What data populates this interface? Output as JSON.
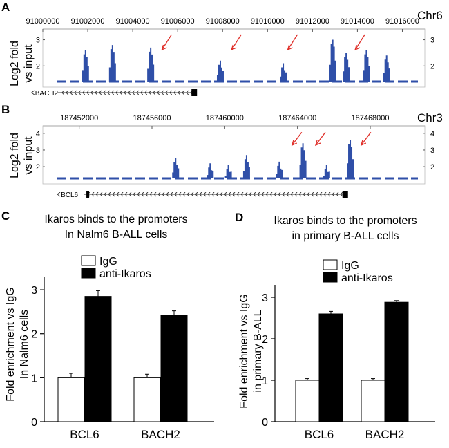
{
  "panels": {
    "A": {
      "letter": "A",
      "chrom": "Chr6",
      "ylabel_1": "Log2 fold",
      "ylabel_2": "vs input",
      "gene": "BACH2"
    },
    "B": {
      "letter": "B",
      "chrom": "Chr3",
      "ylabel_1": "Log2 fold",
      "ylabel_2": "vs input",
      "gene": "BCL6"
    },
    "C": {
      "letter": "C",
      "title_1": "Ikaros binds to the promoters",
      "title_2": "In Nalm6 B-ALL cells",
      "ylabel_1": "Fold enrichment vs IgG",
      "ylabel_2": "In Nalm6 cells"
    },
    "D": {
      "letter": "D",
      "title_1": "Ikaros  binds to the promoters",
      "title_2": "in primary  B-ALL cells",
      "ylabel_1": "Fold enrichment vs IgG",
      "ylabel_2": "in primary B-ALL"
    }
  },
  "colors": {
    "track": "#2f4fa8",
    "arrow": "#e0302a",
    "bar_ikaros": "#000000",
    "bar_igg": "#ffffff"
  },
  "chart_data": [
    {
      "id": "A",
      "type": "area",
      "title": "Chr6",
      "xlabel": "",
      "ylabel": "Log2 fold vs input",
      "x_ticks": [
        91000000,
        91002000,
        91004000,
        91006000,
        91008000,
        91010000,
        91012000,
        91014000,
        91016000
      ],
      "xlim": [
        91000000,
        91017000
      ],
      "ylim": [
        1.4,
        3.2
      ],
      "y_ticks": [
        2,
        3
      ],
      "baseline": 1.4,
      "peaks": [
        {
          "x": 91001900,
          "y": 2.6
        },
        {
          "x": 91003100,
          "y": 2.8
        },
        {
          "x": 91004800,
          "y": 2.7
        },
        {
          "x": 91007900,
          "y": 2.2
        },
        {
          "x": 91010700,
          "y": 2.1
        },
        {
          "x": 91012900,
          "y": 3.0
        },
        {
          "x": 91013500,
          "y": 2.5
        },
        {
          "x": 91014400,
          "y": 2.6
        },
        {
          "x": 91015300,
          "y": 2.4
        }
      ],
      "arrows_at": [
        91005300,
        91008400,
        91010900,
        91013900
      ],
      "gene": {
        "name": "BACH2",
        "start": 90999500,
        "end": 91006800,
        "strand": "-"
      }
    },
    {
      "id": "B",
      "type": "area",
      "title": "Chr3",
      "xlabel": "",
      "ylabel": "Log2 fold vs input",
      "x_ticks": [
        187452000,
        187456000,
        187460000,
        187464000,
        187468000
      ],
      "xlim": [
        187450000,
        187471000
      ],
      "ylim": [
        1.3,
        4.2
      ],
      "y_ticks": [
        2,
        3,
        4
      ],
      "baseline": 1.3,
      "peaks": [
        {
          "x": 187457300,
          "y": 2.5
        },
        {
          "x": 187459200,
          "y": 2.2
        },
        {
          "x": 187460200,
          "y": 2.1
        },
        {
          "x": 187461200,
          "y": 2.7
        },
        {
          "x": 187463000,
          "y": 2.3
        },
        {
          "x": 187464300,
          "y": 3.4
        },
        {
          "x": 187465600,
          "y": 2.1
        },
        {
          "x": 187466900,
          "y": 3.6
        }
      ],
      "arrows_at": [
        187463700,
        187465000,
        187467500
      ],
      "gene": {
        "name": "BCL6",
        "start": 187450800,
        "end": 187466700,
        "strand": "-"
      }
    },
    {
      "id": "C",
      "type": "bar",
      "categories": [
        "BCL6",
        "BACH2"
      ],
      "series": [
        {
          "name": "IgG",
          "values": [
            1.0,
            1.0
          ],
          "errors": [
            0.1,
            0.08
          ]
        },
        {
          "name": "anti-Ikaros",
          "values": [
            2.85,
            2.42
          ],
          "errors": [
            0.13,
            0.1
          ]
        }
      ],
      "ylim": [
        0,
        3.3
      ],
      "y_ticks": [
        0,
        1,
        2,
        3
      ],
      "ylabel": "Fold enrichment vs IgG In Nalm6 cells",
      "legend": "top-center"
    },
    {
      "id": "D",
      "type": "bar",
      "categories": [
        "BCL6",
        "BACH2"
      ],
      "series": [
        {
          "name": "IgG",
          "values": [
            1.0,
            1.0
          ],
          "errors": [
            0.04,
            0.04
          ]
        },
        {
          "name": "anti-Ikaros",
          "values": [
            2.6,
            2.88
          ],
          "errors": [
            0.06,
            0.04
          ]
        }
      ],
      "ylim": [
        0,
        3.3
      ],
      "y_ticks": [
        0,
        1,
        2,
        3
      ],
      "ylabel": "Fold enrichment vs IgG in primary B-ALL",
      "legend": "top-center"
    }
  ]
}
